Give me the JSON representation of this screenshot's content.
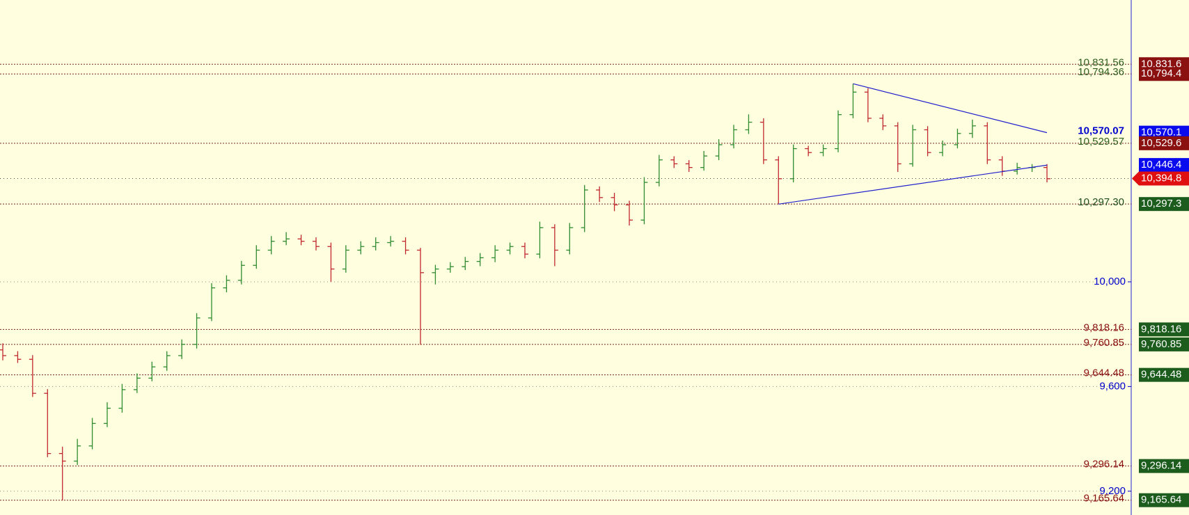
{
  "chart_data": {
    "type": "ohlc",
    "ylim": [
      9109,
      11077
    ],
    "yticks": [
      {
        "value": 9200,
        "label": "9,200"
      },
      {
        "value": 9600,
        "label": "9,600"
      },
      {
        "value": 10000,
        "label": "10,000"
      }
    ],
    "grid": true,
    "up_color": "#2e8b2e",
    "down_color": "#c0262c",
    "axis_color": "#0000cc",
    "open": [
      9740,
      9718,
      9704,
      9574,
      9344,
      9315,
      9373,
      9459,
      9517,
      9588,
      9632,
      9675,
      9718,
      9761,
      9862,
      9977,
      10006,
      10063,
      10121,
      10155,
      10164,
      10155,
      10135,
      10049,
      10121,
      10135,
      10150,
      10155,
      10121,
      10035,
      10049,
      10058,
      10078,
      10092,
      10121,
      10135,
      10106,
      10207,
      10121,
      10207,
      10351,
      10322,
      10294,
      10236,
      10380,
      10466,
      10451,
      10437,
      10481,
      10524,
      10581,
      10610,
      10466,
      10394,
      10509,
      10494,
      10509,
      10639,
      10725,
      10625,
      10596,
      10451,
      10581,
      10494,
      10524,
      10567,
      10596,
      10466,
      10423,
      10437,
      10437
    ],
    "high": [
      9765,
      9735,
      9720,
      9590,
      9370,
      9400,
      9480,
      9540,
      9610,
      9650,
      9695,
      9735,
      9780,
      9880,
      9995,
      10025,
      10080,
      10140,
      10175,
      10190,
      10180,
      10170,
      10150,
      10140,
      10155,
      10170,
      10175,
      10170,
      10130,
      10065,
      10075,
      10095,
      10110,
      10140,
      10150,
      10150,
      10230,
      10220,
      10225,
      10370,
      10365,
      10340,
      10310,
      10400,
      10485,
      10480,
      10465,
      10500,
      10545,
      10600,
      10640,
      10625,
      10480,
      10525,
      10520,
      10525,
      10655,
      10757,
      10740,
      10640,
      10610,
      10600,
      10595,
      10540,
      10585,
      10620,
      10610,
      10480,
      10455,
      10450,
      10450
    ],
    "low": [
      9700,
      9690,
      9560,
      9330,
      9165,
      9300,
      9360,
      9445,
      9500,
      9575,
      9620,
      9660,
      9705,
      9745,
      9850,
      9960,
      9990,
      10050,
      10105,
      10140,
      10140,
      10120,
      10000,
      10035,
      10105,
      10120,
      10135,
      10105,
      9760,
      9990,
      10035,
      10045,
      10060,
      10075,
      10105,
      10090,
      10090,
      10060,
      10105,
      10190,
      10305,
      10270,
      10215,
      10220,
      10365,
      10435,
      10420,
      10425,
      10465,
      10510,
      10565,
      10450,
      10297,
      10380,
      10480,
      10480,
      10495,
      10625,
      10610,
      10580,
      10420,
      10440,
      10480,
      10480,
      10510,
      10550,
      10450,
      10405,
      10410,
      10420,
      10380
    ],
    "close": [
      9718,
      9704,
      9574,
      9344,
      9315,
      9373,
      9459,
      9517,
      9588,
      9632,
      9675,
      9718,
      9761,
      9862,
      9977,
      10006,
      10063,
      10121,
      10155,
      10164,
      10155,
      10135,
      10049,
      10121,
      10135,
      10150,
      10155,
      10121,
      10035,
      10049,
      10058,
      10078,
      10092,
      10121,
      10135,
      10106,
      10207,
      10121,
      10207,
      10351,
      10322,
      10294,
      10236,
      10380,
      10466,
      10451,
      10437,
      10481,
      10524,
      10581,
      10610,
      10466,
      10394,
      10509,
      10494,
      10509,
      10639,
      10725,
      10625,
      10596,
      10451,
      10581,
      10494,
      10524,
      10567,
      10596,
      10466,
      10423,
      10437,
      10437,
      10394
    ],
    "trendlines": [
      {
        "from": [
          57,
          10757
        ],
        "to": [
          70,
          10570
        ],
        "color": "#2020cc"
      },
      {
        "from": [
          52,
          10297
        ],
        "to": [
          70,
          10446
        ],
        "color": "#2020cc"
      }
    ],
    "levels": [
      {
        "value": 10831.56,
        "label": "10,831.56",
        "box_label": "10,831.6",
        "label_color": "#2f5f1f",
        "box_color": "#8b1010",
        "line": true
      },
      {
        "value": 10794.36,
        "label": "10,794.36",
        "box_label": "10,794.4",
        "label_color": "#2f5f1f",
        "box_color": "#8b1010",
        "line": true
      },
      {
        "value": 10570.07,
        "label": "10,570.07",
        "box_label": "10,570.1",
        "label_color": "#0000cc",
        "box_color": "#0a0aee",
        "line": false
      },
      {
        "value": 10529.57,
        "label": "10,529.57",
        "box_label": "10,529.6",
        "label_color": "#2f5f1f",
        "box_color": "#8b1010",
        "line": true
      },
      {
        "value": 10446.4,
        "box_label": "10,446.4",
        "box_color": "#0a0aee",
        "line": false
      },
      {
        "value": 10394.8,
        "box_label": "10,394.8",
        "box_color": "#e01010",
        "line": true,
        "current": true
      },
      {
        "value": 10297.3,
        "label": "10,297.30",
        "box_label": "10,297.3",
        "label_color": "#1f4f1f",
        "box_color": "#1c5c1c",
        "line": true
      },
      {
        "value": 9818.16,
        "label": "9,818.16",
        "box_label": "9,818.16",
        "label_color": "#8b1010",
        "box_color": "#1c5c1c",
        "line": true
      },
      {
        "value": 9760.85,
        "label": "9,760.85",
        "box_label": "9,760.85",
        "label_color": "#8b1010",
        "box_color": "#1c5c1c",
        "line": true
      },
      {
        "value": 9644.48,
        "label": "9,644.48",
        "box_label": "9,644.48",
        "label_color": "#8b1010",
        "box_color": "#1c5c1c",
        "line": true
      },
      {
        "value": 9296.14,
        "label": "9,296.14",
        "box_label": "9,296.14",
        "label_color": "#8b1010",
        "box_color": "#1c5c1c",
        "line": true
      },
      {
        "value": 9165.64,
        "label": "9,165.64",
        "box_label": "9,165.64",
        "label_color": "#8b1010",
        "box_color": "#1c5c1c",
        "line": true
      }
    ]
  }
}
